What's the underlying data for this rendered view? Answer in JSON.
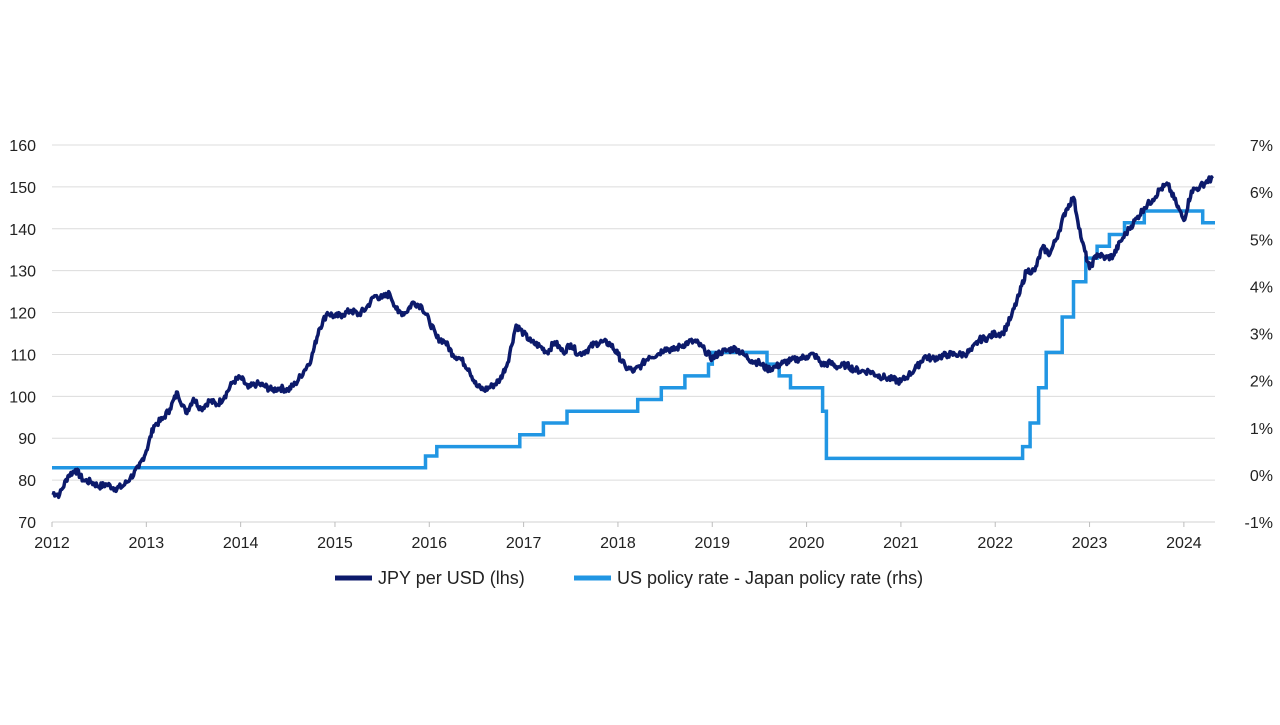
{
  "chart_data": {
    "type": "line",
    "title": "",
    "xlabel": "",
    "ylabel_left": "",
    "ylabel_right": "",
    "x_ticks": [
      "2012",
      "2013",
      "2014",
      "2015",
      "2016",
      "2017",
      "2018",
      "2019",
      "2020",
      "2021",
      "2022",
      "2023",
      "2024"
    ],
    "x_range": [
      2012.0,
      2024.33
    ],
    "y_left_ticks": [
      "70",
      "80",
      "90",
      "100",
      "110",
      "120",
      "130",
      "140",
      "150",
      "160"
    ],
    "y_left_range": [
      70,
      160
    ],
    "y_right_ticks": [
      "-1%",
      "0%",
      "1%",
      "2%",
      "3%",
      "4%",
      "5%",
      "6%",
      "7%"
    ],
    "y_right_range": [
      -1,
      7
    ],
    "grid": "horizontal",
    "legend_position": "bottom",
    "series": [
      {
        "name": "JPY per USD (lhs)",
        "axis": "left",
        "color": "#0c1a6b",
        "points": [
          [
            2012.0,
            77
          ],
          [
            2012.08,
            76.5
          ],
          [
            2012.17,
            81
          ],
          [
            2012.25,
            82.5
          ],
          [
            2012.33,
            80
          ],
          [
            2012.42,
            79.5
          ],
          [
            2012.5,
            78.5
          ],
          [
            2012.58,
            79
          ],
          [
            2012.67,
            78
          ],
          [
            2012.75,
            78.5
          ],
          [
            2012.83,
            80.5
          ],
          [
            2012.92,
            83
          ],
          [
            2013.0,
            87
          ],
          [
            2013.08,
            93
          ],
          [
            2013.17,
            94.5
          ],
          [
            2013.25,
            97
          ],
          [
            2013.33,
            101
          ],
          [
            2013.42,
            96
          ],
          [
            2013.5,
            99.5
          ],
          [
            2013.58,
            97
          ],
          [
            2013.67,
            99
          ],
          [
            2013.75,
            98
          ],
          [
            2013.83,
            100
          ],
          [
            2013.92,
            103.5
          ],
          [
            2014.0,
            104.5
          ],
          [
            2014.08,
            102
          ],
          [
            2014.17,
            103
          ],
          [
            2014.25,
            102.5
          ],
          [
            2014.33,
            101.5
          ],
          [
            2014.42,
            102
          ],
          [
            2014.5,
            101.5
          ],
          [
            2014.58,
            103
          ],
          [
            2014.67,
            106
          ],
          [
            2014.75,
            109
          ],
          [
            2014.83,
            116
          ],
          [
            2014.92,
            120
          ],
          [
            2015.0,
            119
          ],
          [
            2015.08,
            119.5
          ],
          [
            2015.17,
            120.5
          ],
          [
            2015.25,
            119.5
          ],
          [
            2015.33,
            121
          ],
          [
            2015.42,
            124
          ],
          [
            2015.5,
            123.5
          ],
          [
            2015.58,
            124.5
          ],
          [
            2015.67,
            120
          ],
          [
            2015.75,
            120
          ],
          [
            2015.83,
            122.5
          ],
          [
            2015.92,
            121.5
          ],
          [
            2016.0,
            118
          ],
          [
            2016.08,
            114
          ],
          [
            2016.17,
            113
          ],
          [
            2016.25,
            110
          ],
          [
            2016.33,
            109
          ],
          [
            2016.42,
            106.5
          ],
          [
            2016.5,
            102.5
          ],
          [
            2016.58,
            101.5
          ],
          [
            2016.67,
            102.5
          ],
          [
            2016.75,
            104
          ],
          [
            2016.83,
            108
          ],
          [
            2016.92,
            117
          ],
          [
            2017.0,
            115
          ],
          [
            2017.08,
            113
          ],
          [
            2017.17,
            112
          ],
          [
            2017.25,
            110.5
          ],
          [
            2017.33,
            113
          ],
          [
            2017.42,
            110.5
          ],
          [
            2017.5,
            112.5
          ],
          [
            2017.58,
            110
          ],
          [
            2017.67,
            111
          ],
          [
            2017.75,
            112.5
          ],
          [
            2017.83,
            113
          ],
          [
            2017.92,
            112.5
          ],
          [
            2018.0,
            110
          ],
          [
            2018.08,
            107
          ],
          [
            2018.17,
            106
          ],
          [
            2018.25,
            107.5
          ],
          [
            2018.33,
            109.5
          ],
          [
            2018.42,
            110
          ],
          [
            2018.5,
            111.5
          ],
          [
            2018.58,
            111
          ],
          [
            2018.67,
            112
          ],
          [
            2018.75,
            113
          ],
          [
            2018.83,
            113
          ],
          [
            2018.92,
            111
          ],
          [
            2019.0,
            109
          ],
          [
            2019.08,
            110.5
          ],
          [
            2019.17,
            111
          ],
          [
            2019.25,
            111.5
          ],
          [
            2019.33,
            110
          ],
          [
            2019.42,
            108.5
          ],
          [
            2019.5,
            108
          ],
          [
            2019.58,
            106.5
          ],
          [
            2019.67,
            107
          ],
          [
            2019.75,
            108
          ],
          [
            2019.83,
            108.5
          ],
          [
            2019.92,
            109
          ],
          [
            2020.0,
            109.5
          ],
          [
            2020.08,
            110
          ],
          [
            2020.17,
            107.5
          ],
          [
            2020.25,
            108
          ],
          [
            2020.33,
            107
          ],
          [
            2020.42,
            107.5
          ],
          [
            2020.5,
            106.5
          ],
          [
            2020.58,
            106
          ],
          [
            2020.67,
            106
          ],
          [
            2020.75,
            105
          ],
          [
            2020.83,
            104.5
          ],
          [
            2020.92,
            104
          ],
          [
            2021.0,
            103.5
          ],
          [
            2021.08,
            105
          ],
          [
            2021.17,
            107
          ],
          [
            2021.25,
            109.5
          ],
          [
            2021.33,
            109
          ],
          [
            2021.42,
            109.5
          ],
          [
            2021.5,
            110
          ],
          [
            2021.58,
            110
          ],
          [
            2021.67,
            110
          ],
          [
            2021.75,
            111
          ],
          [
            2021.83,
            113.5
          ],
          [
            2021.92,
            114
          ],
          [
            2022.0,
            115
          ],
          [
            2022.08,
            115
          ],
          [
            2022.17,
            119
          ],
          [
            2022.25,
            124
          ],
          [
            2022.33,
            130
          ],
          [
            2022.42,
            130
          ],
          [
            2022.5,
            135.5
          ],
          [
            2022.58,
            134
          ],
          [
            2022.67,
            139
          ],
          [
            2022.75,
            144.5
          ],
          [
            2022.83,
            147.5
          ],
          [
            2022.92,
            137
          ],
          [
            2023.0,
            130.5
          ],
          [
            2023.08,
            134
          ],
          [
            2023.17,
            133
          ],
          [
            2023.25,
            133.5
          ],
          [
            2023.33,
            137
          ],
          [
            2023.42,
            140
          ],
          [
            2023.5,
            142.5
          ],
          [
            2023.58,
            145
          ],
          [
            2023.67,
            147
          ],
          [
            2023.75,
            149.5
          ],
          [
            2023.83,
            150.5
          ],
          [
            2023.92,
            146
          ],
          [
            2024.0,
            142
          ],
          [
            2024.08,
            149
          ],
          [
            2024.17,
            150
          ],
          [
            2024.25,
            151.5
          ],
          [
            2024.3,
            152
          ]
        ]
      },
      {
        "name": "US policy rate - Japan policy rate (rhs)",
        "axis": "right",
        "color": "#2196e3",
        "steps": [
          [
            2012.0,
            0.15
          ],
          [
            2015.96,
            0.4
          ],
          [
            2016.08,
            0.6
          ],
          [
            2016.96,
            0.85
          ],
          [
            2017.21,
            1.1
          ],
          [
            2017.46,
            1.35
          ],
          [
            2017.96,
            1.35
          ],
          [
            2018.21,
            1.6
          ],
          [
            2018.46,
            1.85
          ],
          [
            2018.71,
            2.1
          ],
          [
            2018.96,
            2.35
          ],
          [
            2019.0,
            2.6
          ],
          [
            2019.58,
            2.35
          ],
          [
            2019.71,
            2.1
          ],
          [
            2019.83,
            1.85
          ],
          [
            2020.17,
            1.35
          ],
          [
            2020.21,
            0.35
          ],
          [
            2022.21,
            0.35
          ],
          [
            2022.29,
            0.6
          ],
          [
            2022.37,
            1.1
          ],
          [
            2022.46,
            1.85
          ],
          [
            2022.54,
            2.6
          ],
          [
            2022.71,
            3.35
          ],
          [
            2022.83,
            4.1
          ],
          [
            2022.96,
            4.6
          ],
          [
            2023.08,
            4.85
          ],
          [
            2023.21,
            5.1
          ],
          [
            2023.37,
            5.35
          ],
          [
            2023.58,
            5.6
          ],
          [
            2024.2,
            5.35
          ],
          [
            2024.33,
            5.35
          ]
        ]
      }
    ]
  }
}
